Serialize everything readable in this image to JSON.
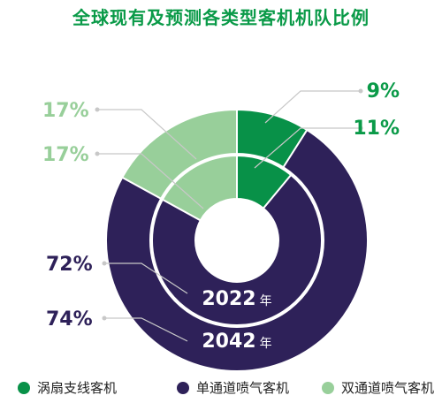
{
  "title": "全球现有及预测各类型客机机队比例",
  "colors": {
    "turboprop": "#089148",
    "single_aisle": "#2e2159",
    "twin_aisle": "#98cf9a",
    "title": "#0a9a48"
  },
  "chart_data": {
    "type": "pie",
    "title": "全球现有及预测各类型客机机队比例",
    "categories": [
      "涡扇支线客机",
      "单通道喷气客机",
      "双通道喷气客机"
    ],
    "series": [
      {
        "name": "2022年",
        "ring": "inner",
        "values": [
          11,
          72,
          17
        ],
        "labels": [
          "11%",
          "72%",
          "17%"
        ]
      },
      {
        "name": "2042年",
        "ring": "outer",
        "values": [
          9,
          74,
          17
        ],
        "labels": [
          "9%",
          "74%",
          "17%"
        ]
      }
    ],
    "ring_labels": [
      {
        "number": "2022",
        "unit": "年"
      },
      {
        "number": "2042",
        "unit": "年"
      }
    ],
    "legend": [
      "涡扇支线客机",
      "单通道喷气客机",
      "双通道喷气客机"
    ],
    "legend_placement": "bottom"
  }
}
